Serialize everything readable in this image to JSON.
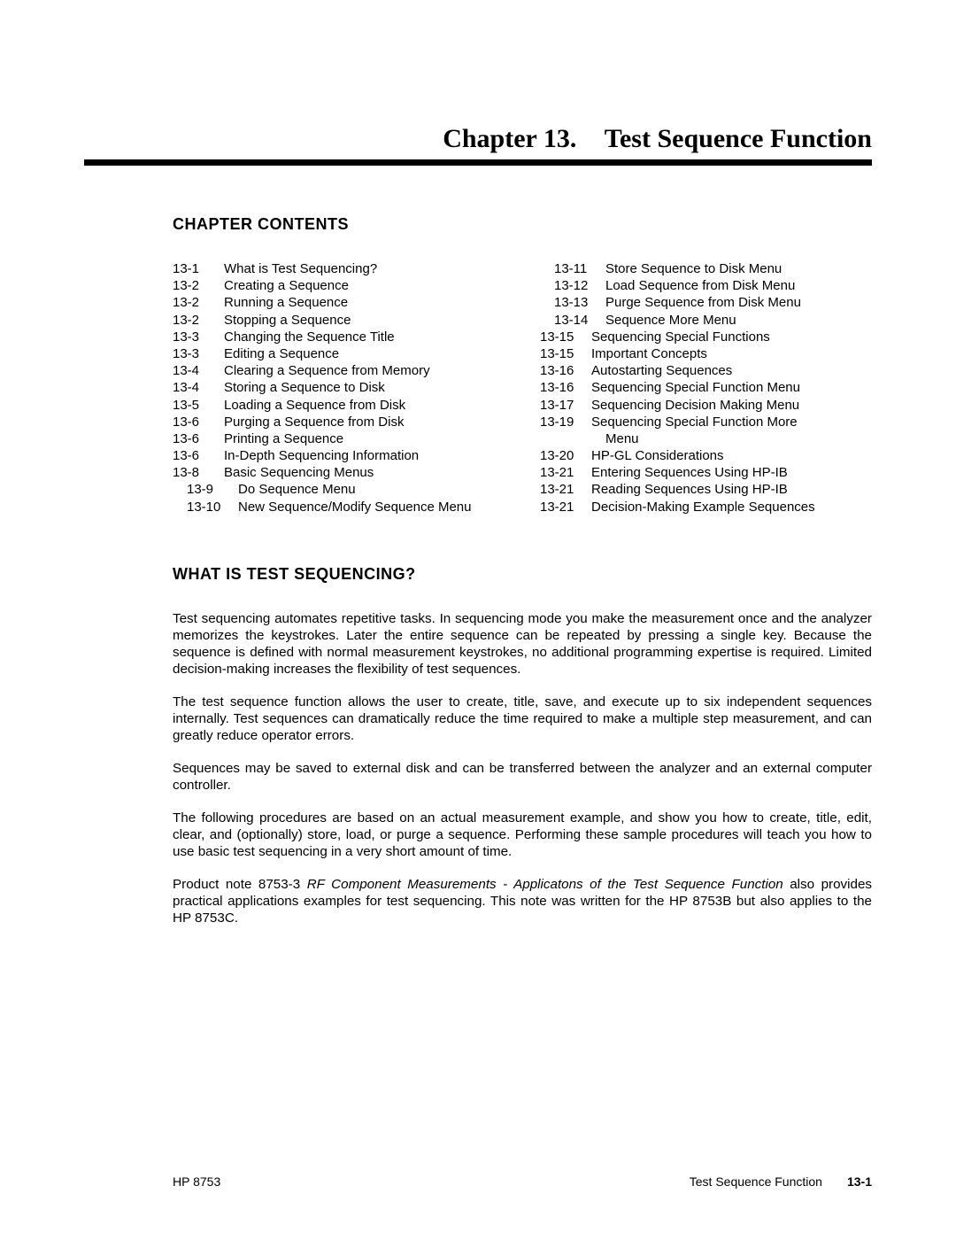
{
  "chapter": {
    "number_label": "Chapter 13.",
    "title": "Test Sequence Function"
  },
  "headings": {
    "contents": "CHAPTER CONTENTS",
    "what_is": "WHAT IS TEST SEQUENCING?"
  },
  "toc": {
    "left": [
      {
        "page": "13-1",
        "title": "What is Test Sequencing?",
        "indent": false
      },
      {
        "page": "13-2",
        "title": "Creating a Sequence",
        "indent": false
      },
      {
        "page": "13-2",
        "title": "Running a Sequence",
        "indent": false
      },
      {
        "page": "13-2",
        "title": "Stopping a Sequence",
        "indent": false
      },
      {
        "page": "13-3",
        "title": "Changing the Sequence Title",
        "indent": false
      },
      {
        "page": "13-3",
        "title": "Editing a Sequence",
        "indent": false
      },
      {
        "page": "13-4",
        "title": "Clearing a Sequence from Memory",
        "indent": false
      },
      {
        "page": "13-4",
        "title": "Storing a Sequence to Disk",
        "indent": false
      },
      {
        "page": "13-5",
        "title": "Loading a Sequence from Disk",
        "indent": false
      },
      {
        "page": "13-6",
        "title": "Purging a Sequence from Disk",
        "indent": false
      },
      {
        "page": "13-6",
        "title": "Printing a Sequence",
        "indent": false
      },
      {
        "page": "13-6",
        "title": "In-Depth Sequencing Information",
        "indent": false
      },
      {
        "page": "13-8",
        "title": "Basic Sequencing Menus",
        "indent": false
      },
      {
        "page": "13-9",
        "title": "Do Sequence Menu",
        "indent": true
      },
      {
        "page": "13-10",
        "title": "New Sequence/Modify Sequence Menu",
        "indent": true
      }
    ],
    "right": [
      {
        "page": "13-11",
        "title": "Store Sequence to Disk Menu",
        "indent": true
      },
      {
        "page": "13-12",
        "title": "Load Sequence from Disk Menu",
        "indent": true
      },
      {
        "page": "13-13",
        "title": "Purge Sequence from Disk Menu",
        "indent": true
      },
      {
        "page": "13-14",
        "title": "Sequence More Menu",
        "indent": true
      },
      {
        "page": "13-15",
        "title": "Sequencing Special Functions",
        "indent": false
      },
      {
        "page": "13-15",
        "title": "Important Concepts",
        "indent": false
      },
      {
        "page": "13-16",
        "title": "Autostarting Sequences",
        "indent": false
      },
      {
        "page": "13-16",
        "title": "Sequencing Special Function Menu",
        "indent": false
      },
      {
        "page": "13-17",
        "title": "Sequencing Decision Making Menu",
        "indent": false
      },
      {
        "page": "13-19",
        "title": "Sequencing Special Function More Menu",
        "indent": false,
        "wrap": true
      },
      {
        "page": "13-20",
        "title": "HP-GL Considerations",
        "indent": false
      },
      {
        "page": "13-21",
        "title": "Entering Sequences Using HP-IB",
        "indent": false
      },
      {
        "page": "13-21",
        "title": "Reading Sequences Using HP-IB",
        "indent": false
      },
      {
        "page": "13-21",
        "title": "Decision-Making Example Sequences",
        "indent": false
      }
    ]
  },
  "paragraphs": {
    "p1": "Test sequencing automates repetitive tasks. In sequencing mode you make the measurement once and the analyzer memorizes the keystrokes. Later the entire sequence can be repeated by pressing a single key. Because the sequence is defined with normal measurement keystrokes, no additional programming expertise is required. Limited decision-making increases the flexibility of test sequences.",
    "p2": "The test sequence function allows the user to create, title, save, and execute up to six independent sequences internally. Test sequences can dramatically reduce the time required to make a multiple step measurement, and can greatly reduce operator errors.",
    "p3": "Sequences may be saved to external disk and can be transferred between the analyzer and an external computer controller.",
    "p4": "The following procedures are based on an actual measurement example, and show you how to create, title, edit, clear, and (optionally) store, load, or purge a sequence. Performing these sample procedures will teach you how to use basic test sequencing in a very short amount of time.",
    "p5_a": "Product note 8753-3 ",
    "p5_i": "RF Component Measurements - Applicatons of the Test Sequence Function",
    "p5_b": " also provides practical applications examples for test sequencing. This note was written for the HP 8753B but also applies to the HP 8753C."
  },
  "footer": {
    "left": "HP 8753",
    "right_label": "Test Sequence Function",
    "page": "13-1"
  },
  "style": {
    "page_bg": "#ffffff",
    "text_color": "#000000",
    "rule_color": "#000000",
    "chapter_title_fontsize": 30,
    "section_heading_fontsize": 18,
    "toc_fontsize": 15,
    "body_fontsize": 15.2,
    "footer_fontsize": 14
  }
}
